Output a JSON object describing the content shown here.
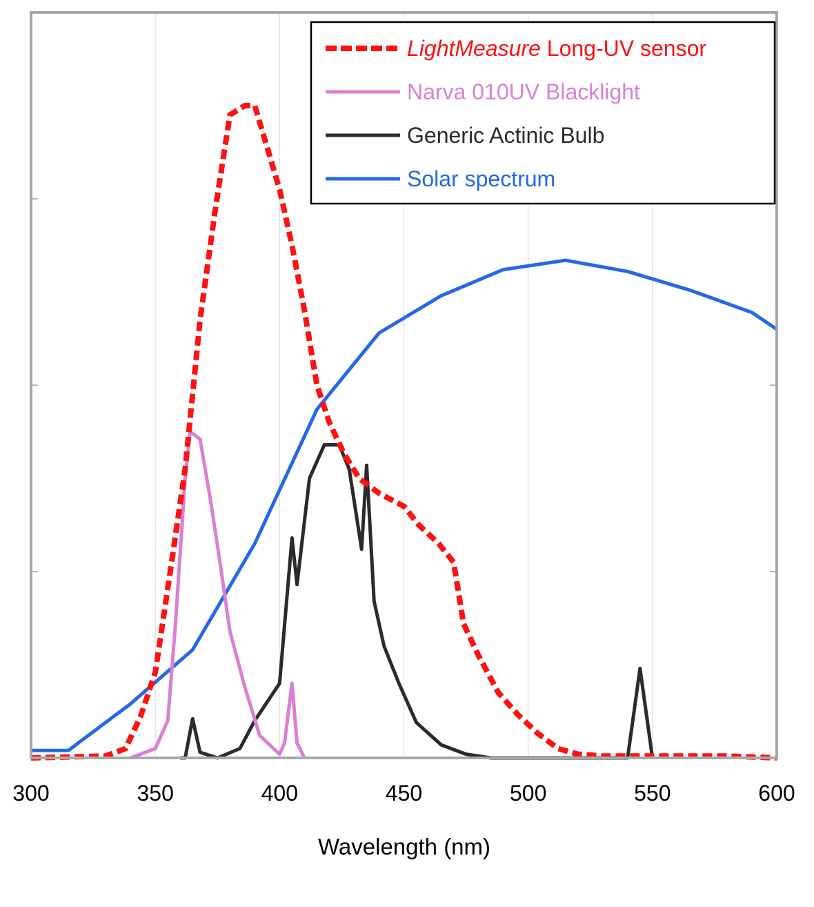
{
  "chart_data": {
    "type": "line",
    "xlabel": "Wavelength (nm)",
    "ylabel": "",
    "xlim": [
      300,
      600
    ],
    "ylim": [
      0,
      4
    ],
    "x_ticks": [
      "300",
      "350",
      "400",
      "450",
      "500",
      "550",
      "600"
    ],
    "x_tick_values": [
      300,
      350,
      400,
      450,
      500,
      550,
      600
    ],
    "y_tick_values": [
      1,
      2,
      3
    ],
    "y_ticks_labeled": false,
    "grid": {
      "vertical": true,
      "horizontal": false
    },
    "legend_position": "top-right",
    "series": [
      {
        "name_italic": "LightMeasure",
        "name_rest": " Long-UV sensor",
        "color": "#ff1111",
        "style": "dashed",
        "x": [
          300,
          330,
          338,
          344,
          350,
          356,
          362,
          368,
          374,
          380,
          386,
          390,
          394,
          400,
          405,
          410,
          415,
          420,
          426,
          432,
          440,
          450,
          456,
          464,
          470,
          474,
          480,
          488,
          496,
          504,
          512,
          520,
          530,
          540,
          560,
          580,
          600
        ],
        "y": [
          0.0,
          0.01,
          0.05,
          0.22,
          0.46,
          1.0,
          1.55,
          2.35,
          2.93,
          3.45,
          3.5,
          3.5,
          3.32,
          3.05,
          2.75,
          2.4,
          2.0,
          1.8,
          1.63,
          1.5,
          1.42,
          1.35,
          1.25,
          1.15,
          1.05,
          0.72,
          0.55,
          0.35,
          0.23,
          0.13,
          0.05,
          0.02,
          0.01,
          0.01,
          0.01,
          0.01,
          0.0
        ]
      },
      {
        "name": "Narva 010UV Blacklight",
        "color": "#da80d4",
        "style": "solid",
        "x": [
          340,
          350,
          355,
          358,
          360,
          362,
          364,
          368,
          372,
          376,
          380,
          386,
          392,
          400,
          402,
          405,
          407,
          410
        ],
        "y": [
          0.0,
          0.05,
          0.2,
          0.7,
          1.1,
          1.5,
          1.75,
          1.71,
          1.4,
          1.05,
          0.68,
          0.38,
          0.12,
          0.02,
          0.08,
          0.4,
          0.08,
          0.0
        ]
      },
      {
        "name": "Generic Actinic Bulb",
        "color": "#2b2b2b",
        "style": "solid",
        "x": [
          360,
          362,
          365,
          368,
          375,
          384,
          390,
          400,
          405,
          407,
          412,
          418,
          424,
          428,
          433,
          435,
          438,
          442,
          448,
          455,
          465,
          475,
          485,
          540,
          545,
          550
        ],
        "y": [
          0.0,
          0.0,
          0.21,
          0.03,
          0.0,
          0.05,
          0.2,
          0.4,
          1.18,
          0.93,
          1.5,
          1.68,
          1.68,
          1.55,
          1.12,
          1.57,
          0.84,
          0.6,
          0.4,
          0.19,
          0.07,
          0.02,
          0.0,
          0.0,
          0.48,
          0.0
        ]
      },
      {
        "name": "Solar spectrum",
        "color": "#2268e8",
        "style": "solid",
        "x": [
          300,
          315,
          340,
          365,
          390,
          415,
          440,
          465,
          490,
          515,
          540,
          565,
          590,
          600
        ],
        "y": [
          0.04,
          0.04,
          0.29,
          0.58,
          1.15,
          1.87,
          2.28,
          2.48,
          2.62,
          2.67,
          2.61,
          2.51,
          2.39,
          2.3
        ]
      }
    ]
  }
}
